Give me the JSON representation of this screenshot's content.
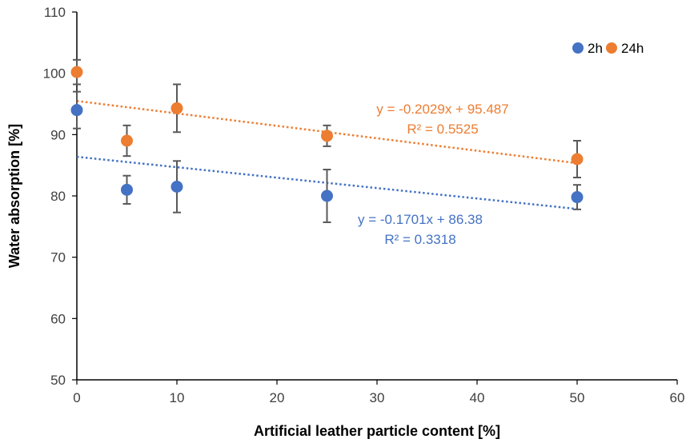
{
  "chart_data": {
    "type": "scatter",
    "title": "",
    "xlabel": "Artificial leather particle content [%]",
    "ylabel": "Water absorption [%]",
    "xlim": [
      0,
      60
    ],
    "ylim": [
      50,
      110
    ],
    "x_ticks": [
      0,
      10,
      20,
      30,
      40,
      50,
      60
    ],
    "y_ticks": [
      50,
      60,
      70,
      80,
      90,
      100,
      110
    ],
    "grid": false,
    "legend_position": "top-right",
    "series": [
      {
        "name": "2h",
        "color": "#4472C4",
        "x": [
          0,
          5,
          10,
          25,
          50
        ],
        "y": [
          94,
          81,
          81.5,
          80,
          79.8
        ],
        "error": [
          3,
          2.3,
          4.2,
          4.3,
          2
        ],
        "trendline": {
          "slope": -0.1701,
          "intercept": 86.38,
          "equation": "y = -0.1701x + 86.38",
          "r2": "R² = 0.3318"
        }
      },
      {
        "name": "24h",
        "color": "#ED7D31",
        "x": [
          0,
          5,
          10,
          25,
          50
        ],
        "y": [
          100.2,
          89,
          94.3,
          89.8,
          86
        ],
        "error": [
          2,
          2.5,
          3.9,
          1.7,
          3
        ],
        "trendline": {
          "slope": -0.2029,
          "intercept": 95.487,
          "equation": "y = -0.2029x + 95.487",
          "r2": "R² = 0.5525"
        }
      }
    ]
  }
}
